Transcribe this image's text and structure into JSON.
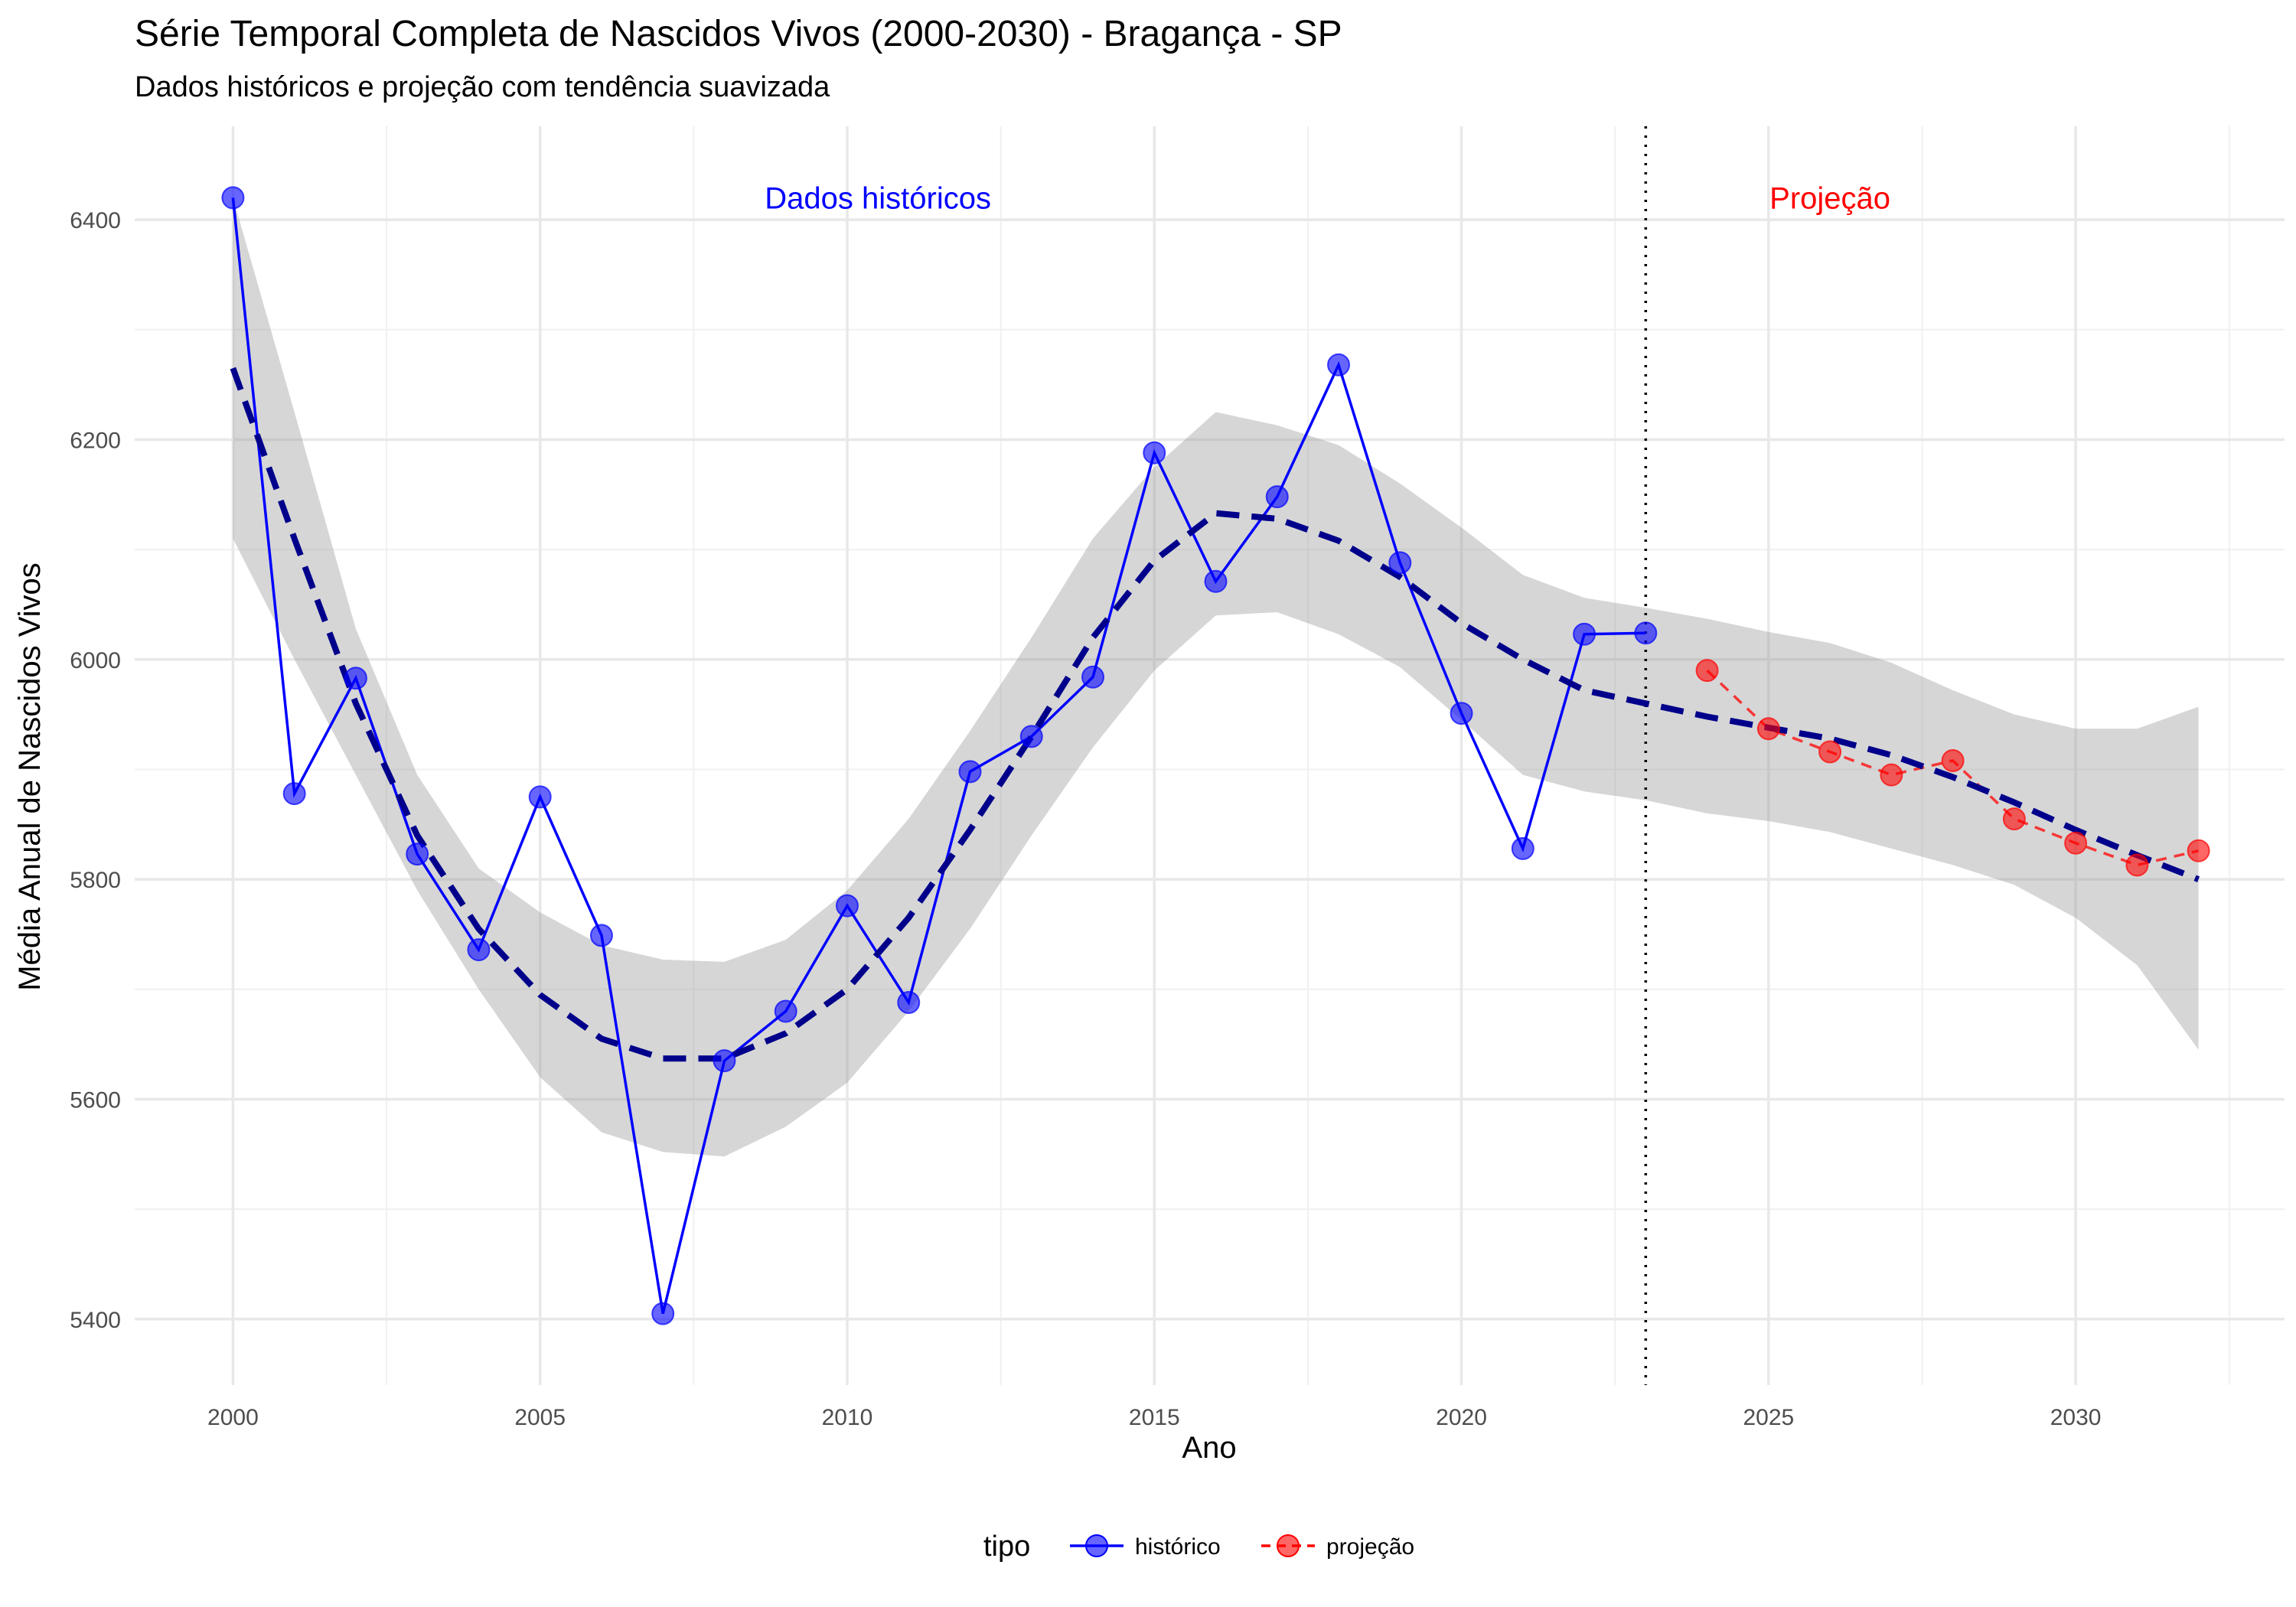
{
  "chart_data": {
    "type": "line",
    "title": "Série Temporal Completa de Nascidos Vivos (2000-2030) -  Bragança - SP",
    "subtitle": "Dados históricos e projeção com tendência suavizada",
    "xlabel": "Ano",
    "ylabel": "Média Anual de Nascidos Vivos",
    "xlim": [
      1998.4,
      2033.4
    ],
    "ylim": [
      5340,
      6485
    ],
    "x_ticks": [
      2000,
      2005,
      2010,
      2015,
      2020,
      2025,
      2030
    ],
    "y_ticks": [
      5400,
      5600,
      5800,
      6000,
      6200,
      6400
    ],
    "grid": true,
    "divider_x": 2023,
    "annotations": [
      {
        "text": "Dados históricos",
        "x": 2010.5,
        "y": 6420,
        "color": "#0000ff"
      },
      {
        "text": "Projeção",
        "x": 2026,
        "y": 6420,
        "color": "#ff0000"
      }
    ],
    "series": [
      {
        "name": "histórico",
        "color": "#0000ff",
        "x": [
          2000,
          2001,
          2002,
          2003,
          2004,
          2005,
          2006,
          2007,
          2008,
          2009,
          2010,
          2011,
          2012,
          2013,
          2014,
          2015,
          2016,
          2017,
          2018,
          2019,
          2020,
          2021,
          2022,
          2023
        ],
        "values": [
          6420,
          5878,
          5983,
          5823,
          5736,
          5875,
          5749,
          5405,
          5635,
          5680,
          5776,
          5688,
          5898,
          5930,
          5984,
          6188,
          6071,
          6148,
          6268,
          6088,
          5951,
          5828,
          6023,
          6024
        ]
      },
      {
        "name": "projeção",
        "color": "#ff0000",
        "x": [
          2024,
          2025,
          2026,
          2027,
          2028,
          2029,
          2030,
          2031,
          2032
        ],
        "values": [
          5990,
          5937,
          5916,
          5895,
          5908,
          5855,
          5833,
          5813,
          5826
        ]
      }
    ],
    "trend": {
      "color": "#00008b",
      "x": [
        2000,
        2001,
        2002,
        2003,
        2004,
        2005,
        2006,
        2007,
        2008,
        2009,
        2010,
        2011,
        2012,
        2013,
        2014,
        2015,
        2016,
        2017,
        2018,
        2019,
        2020,
        2021,
        2022,
        2023,
        2024,
        2025,
        2026,
        2027,
        2028,
        2029,
        2030,
        2031,
        2032
      ],
      "values": [
        6265,
        6110,
        5960,
        5840,
        5755,
        5695,
        5655,
        5637,
        5637,
        5660,
        5700,
        5765,
        5845,
        5930,
        6020,
        6090,
        6133,
        6128,
        6108,
        6075,
        6033,
        6000,
        5972,
        5960,
        5948,
        5938,
        5928,
        5913,
        5893,
        5870,
        5845,
        5822,
        5800
      ],
      "lower": [
        6110,
        6000,
        5895,
        5790,
        5700,
        5620,
        5570,
        5552,
        5548,
        5575,
        5615,
        5680,
        5755,
        5840,
        5920,
        5990,
        6040,
        6043,
        6023,
        5993,
        5945,
        5895,
        5880,
        5872,
        5860,
        5853,
        5843,
        5828,
        5813,
        5795,
        5765,
        5722,
        5645
      ],
      "upper": [
        6420,
        6225,
        6028,
        5895,
        5810,
        5770,
        5740,
        5727,
        5725,
        5745,
        5790,
        5855,
        5935,
        6020,
        6110,
        6175,
        6225,
        6213,
        6195,
        6160,
        6120,
        6077,
        6056,
        6047,
        6037,
        6025,
        6015,
        5997,
        5972,
        5950,
        5937,
        5937,
        5957
      ]
    }
  },
  "legend": {
    "title": "tipo",
    "items": [
      {
        "label": "histórico",
        "color": "#0000ff",
        "dashed": false
      },
      {
        "label": "projeção",
        "color": "#ff0000",
        "dashed": true
      }
    ]
  }
}
